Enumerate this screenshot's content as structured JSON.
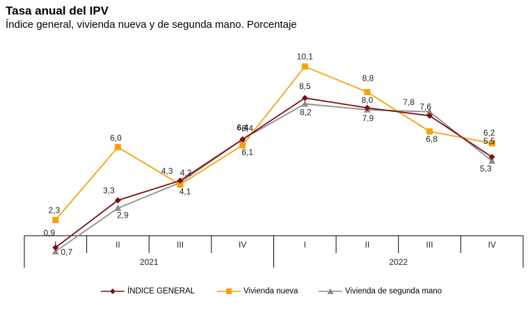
{
  "header": {
    "title": "Tasa anual del IPV",
    "subtitle": "Índice general, vivienda nueva y de segunda mano. Porcentaje"
  },
  "chart_data": {
    "type": "line",
    "title": "Tasa anual del IPV",
    "subtitle": "Índice general, vivienda nueva y de segunda mano. Porcentaje",
    "categories": [
      "I",
      "II",
      "III",
      "IV",
      "I",
      "II",
      "III",
      "IV"
    ],
    "groups": [
      {
        "label": "2021",
        "span": 4
      },
      {
        "label": "2022",
        "span": 4
      }
    ],
    "ylim": [
      0,
      11
    ],
    "grid": false,
    "legend_position": "bottom",
    "series": [
      {
        "name": "ÍNDICE GENERAL",
        "color": "#7b1010",
        "marker": "diamond",
        "values": [
          0.9,
          3.3,
          4.3,
          6.4,
          8.5,
          8.0,
          7.6,
          5.5
        ],
        "labels": [
          "0,9",
          "3,3",
          "4,3",
          "6,4",
          "8,5",
          "8,0",
          "7,6",
          "5,5"
        ]
      },
      {
        "name": "Vivienda nueva",
        "color": "#f5a20c",
        "marker": "square",
        "values": [
          2.3,
          6.0,
          4.1,
          6.1,
          10.1,
          8.8,
          6.8,
          6.2
        ],
        "labels": [
          "2,3",
          "6,0",
          "4,1",
          "6,1",
          "10,1",
          "8,8",
          "6,8",
          "6,2"
        ]
      },
      {
        "name": "Vivienda de segunda mano",
        "color": "#8c8c8c",
        "marker": "triangle",
        "values": [
          0.7,
          2.9,
          4.2,
          6.4,
          8.2,
          7.9,
          7.8,
          5.3
        ],
        "labels": [
          "0,7",
          "2,9",
          "4,2",
          "6,4",
          "8,2",
          "7,9",
          "7,8",
          "5,3"
        ]
      }
    ]
  }
}
